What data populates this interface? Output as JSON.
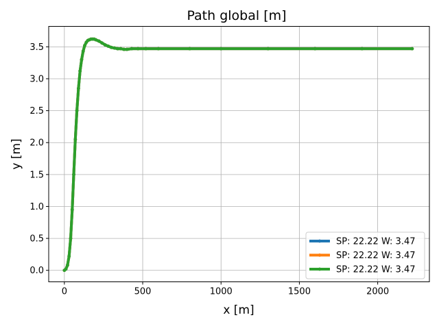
{
  "chart_data": {
    "type": "line",
    "title": "Path global [m]",
    "xlabel": "x [m]",
    "ylabel": "y [m]",
    "xlim": [
      -100,
      2330
    ],
    "ylim": [
      -0.18,
      3.82
    ],
    "xticks": [
      0,
      500,
      1000,
      1500,
      2000
    ],
    "yticks": [
      0.0,
      0.5,
      1.0,
      1.5,
      2.0,
      2.5,
      3.0,
      3.5
    ],
    "xtick_labels": [
      "0",
      "500",
      "1000",
      "1500",
      "2000"
    ],
    "ytick_labels": [
      "0.0",
      "0.5",
      "1.0",
      "1.5",
      "2.0",
      "2.5",
      "3.0",
      "3.5"
    ],
    "grid": true,
    "legend_position": "lower-right",
    "series": [
      {
        "name": "SP: 22.22 W: 3.47",
        "color": "#1f77b4",
        "x": [
          0,
          10,
          20,
          30,
          40,
          50,
          60,
          70,
          80,
          90,
          100,
          110,
          120,
          130,
          140,
          150,
          160,
          170,
          180,
          190,
          200,
          220,
          240,
          260,
          280,
          300,
          320,
          340,
          360,
          380,
          400,
          430,
          470,
          520,
          600,
          800,
          1000,
          1300,
          1600,
          1900,
          2220
        ],
        "y": [
          0.0,
          0.02,
          0.08,
          0.22,
          0.5,
          0.95,
          1.5,
          2.05,
          2.5,
          2.85,
          3.12,
          3.3,
          3.43,
          3.52,
          3.57,
          3.6,
          3.61,
          3.62,
          3.62,
          3.62,
          3.61,
          3.59,
          3.56,
          3.53,
          3.51,
          3.49,
          3.48,
          3.47,
          3.47,
          3.46,
          3.46,
          3.47,
          3.47,
          3.47,
          3.47,
          3.47,
          3.47,
          3.47,
          3.47,
          3.47,
          3.47
        ]
      },
      {
        "name": "SP: 22.22 W: 3.47",
        "color": "#ff7f0e",
        "x": [
          0,
          10,
          20,
          30,
          40,
          50,
          60,
          70,
          80,
          90,
          100,
          110,
          120,
          130,
          140,
          150,
          160,
          170,
          180,
          190,
          200,
          220,
          240,
          260,
          280,
          300,
          320,
          340,
          360,
          380,
          400,
          430,
          470,
          520,
          600,
          800,
          1000,
          1300,
          1600,
          1900,
          2220
        ],
        "y": [
          0.0,
          0.02,
          0.08,
          0.22,
          0.5,
          0.95,
          1.5,
          2.05,
          2.5,
          2.85,
          3.12,
          3.3,
          3.43,
          3.52,
          3.57,
          3.6,
          3.61,
          3.62,
          3.62,
          3.62,
          3.61,
          3.59,
          3.56,
          3.53,
          3.51,
          3.49,
          3.48,
          3.47,
          3.47,
          3.46,
          3.46,
          3.47,
          3.47,
          3.47,
          3.47,
          3.47,
          3.47,
          3.47,
          3.47,
          3.47,
          3.47
        ]
      },
      {
        "name": "SP: 22.22 W: 3.47",
        "color": "#2ca02c",
        "x": [
          0,
          10,
          20,
          30,
          40,
          50,
          60,
          70,
          80,
          90,
          100,
          110,
          120,
          130,
          140,
          150,
          160,
          170,
          180,
          190,
          200,
          220,
          240,
          260,
          280,
          300,
          320,
          340,
          360,
          380,
          400,
          430,
          470,
          520,
          600,
          800,
          1000,
          1300,
          1600,
          1900,
          2220
        ],
        "y": [
          0.0,
          0.02,
          0.08,
          0.22,
          0.5,
          0.95,
          1.5,
          2.05,
          2.5,
          2.85,
          3.12,
          3.3,
          3.43,
          3.52,
          3.57,
          3.6,
          3.61,
          3.62,
          3.62,
          3.62,
          3.61,
          3.59,
          3.56,
          3.53,
          3.51,
          3.49,
          3.48,
          3.47,
          3.47,
          3.46,
          3.46,
          3.47,
          3.47,
          3.47,
          3.47,
          3.47,
          3.47,
          3.47,
          3.47,
          3.47,
          3.47
        ]
      }
    ]
  }
}
